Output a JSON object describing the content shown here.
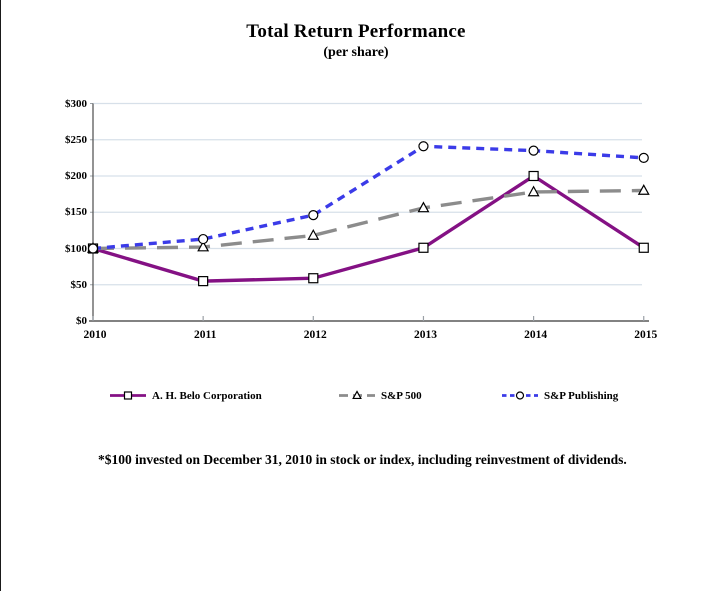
{
  "header": {
    "title": "Total Return Performance",
    "subtitle": "(per share)"
  },
  "footnote": "*$100 invested on December 31, 2010 in stock or index, including reinvestment of dividends.",
  "chart_data": {
    "type": "line",
    "title": "Total Return Performance",
    "subtitle": "(per share)",
    "categories": [
      "2010",
      "2011",
      "2012",
      "2013",
      "2014",
      "2015"
    ],
    "series": [
      {
        "name": "A. H. Belo Corporation",
        "values": [
          100,
          55,
          59,
          101,
          200,
          101
        ],
        "color": "#841184",
        "dash": "solid",
        "marker": "square"
      },
      {
        "name": "S&P 500",
        "values": [
          100,
          102,
          118,
          156,
          178,
          180
        ],
        "color": "#8C8C8C",
        "dash": "long-dash",
        "marker": "triangle"
      },
      {
        "name": "S&P Publishing",
        "values": [
          100,
          113,
          146,
          241,
          235,
          225
        ],
        "color": "#3B3BE8",
        "dash": "dash",
        "marker": "circle"
      }
    ],
    "xlabel": "",
    "ylabel": "",
    "ylim": [
      0,
      300
    ],
    "ytick_step": 50,
    "ytick_labels": [
      "$0",
      "$50",
      "$100",
      "$150",
      "$200",
      "$250",
      "$300"
    ],
    "grid": true,
    "legend_position": "bottom",
    "gridline_color": "#D7E0E9",
    "axis_color": "#595959",
    "tick_color": "#9AA0A6",
    "marker_fill": "#FFFFFF",
    "marker_stroke": "#000000"
  }
}
